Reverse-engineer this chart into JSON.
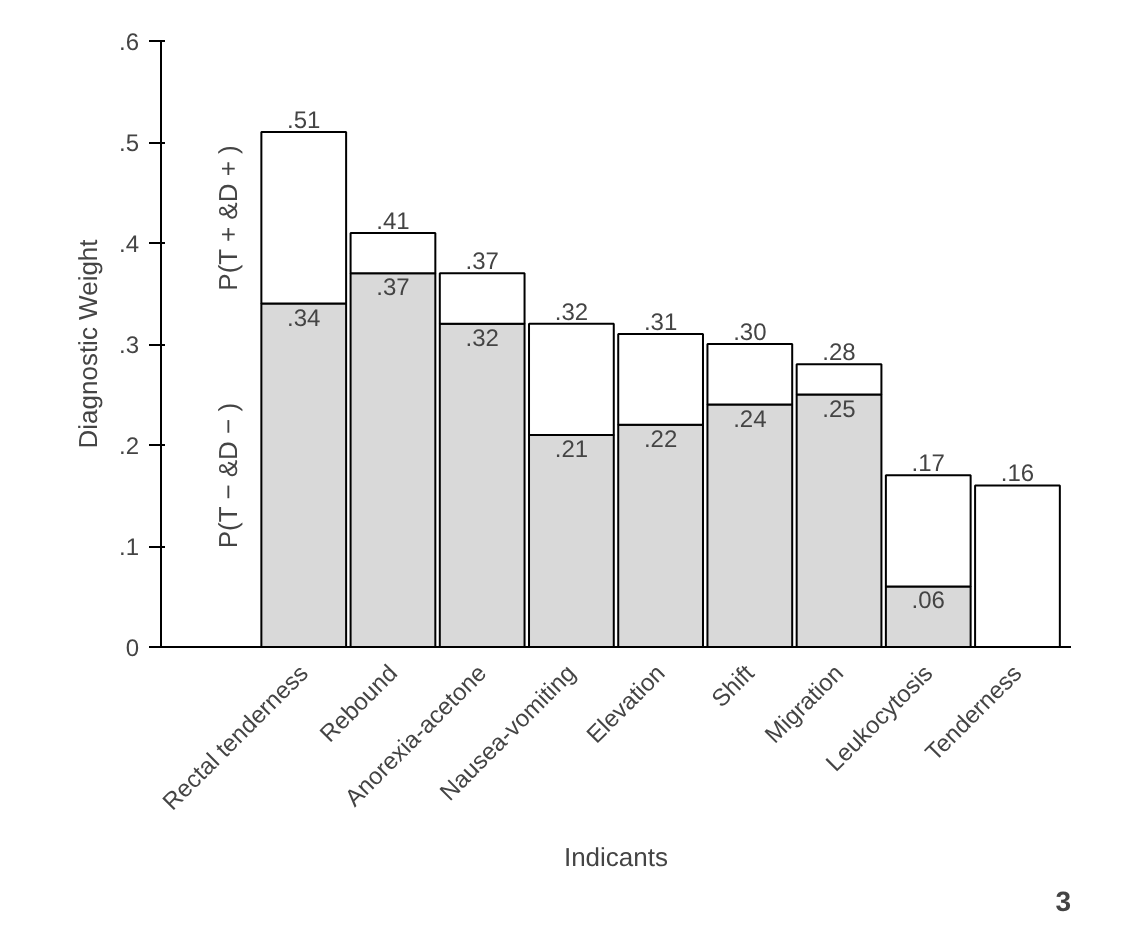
{
  "chart_data": {
    "type": "bar",
    "stacked": true,
    "ylabel": "Diagnostic Weight",
    "xlabel": "Indicants",
    "categories": [
      "Rectal tenderness",
      "Rebound",
      "Anorexia-acetone",
      "Nausea-vomiting",
      "Elevation",
      "Shift",
      "Migration",
      "Leukocytosis",
      "Tenderness"
    ],
    "series": [
      {
        "name": "P(T − &D − )",
        "color": "#d9d9d9",
        "values": [
          0.34,
          0.37,
          0.32,
          0.21,
          0.22,
          0.24,
          0.25,
          0.06,
          null
        ],
        "value_labels": [
          ".34",
          ".37",
          ".32",
          ".21",
          ".22",
          ".24",
          ".25",
          ".06",
          null
        ]
      },
      {
        "name": "P(T + &D + )",
        "color": "#ffffff",
        "values": [
          0.17,
          0.04,
          0.05,
          0.11,
          0.09,
          0.06,
          0.03,
          0.11,
          0.16
        ]
      }
    ],
    "totals": [
      ".51",
      ".41",
      ".37",
      ".32",
      ".31",
      ".30",
      ".28",
      ".17",
      ".16"
    ],
    "ylim": [
      0,
      0.6
    ],
    "yticks": [
      0,
      {
        "value": 0.1,
        "label": ".1"
      },
      {
        "value": 0.2,
        "label": ".2"
      },
      {
        "value": 0.3,
        "label": ".3"
      },
      {
        "value": 0.4,
        "label": ".4"
      },
      {
        "value": 0.5,
        "label": ".5"
      },
      {
        "value": 0.6,
        "label": ".6"
      }
    ],
    "grid": false,
    "annotations": [
      "3"
    ]
  }
}
